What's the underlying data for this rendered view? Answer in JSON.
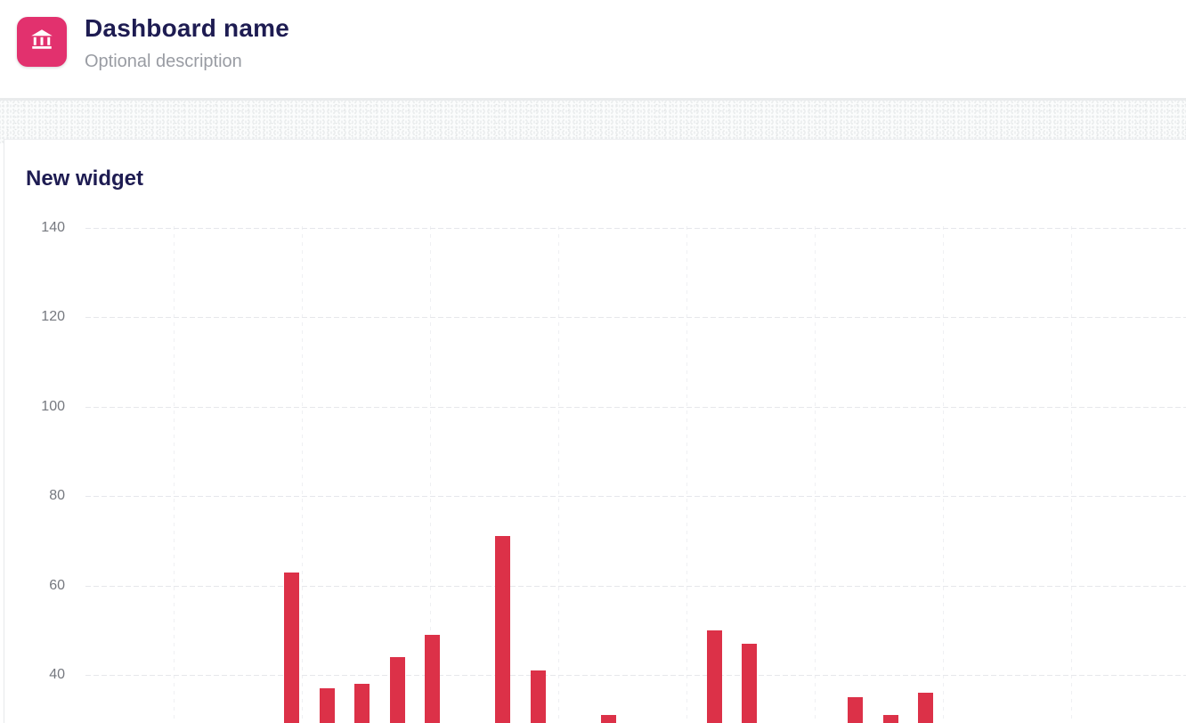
{
  "header": {
    "title": "Dashboard name",
    "description": "Optional description",
    "icon": "bank-icon",
    "icon_bg_color": "#e2316e"
  },
  "widget": {
    "title": "New widget"
  },
  "chart_data": {
    "type": "bar",
    "title": "New widget",
    "bar_color": "#dc3148",
    "y_ticks": [
      140,
      120,
      100,
      80,
      60,
      40
    ],
    "y_top_visible": 140,
    "values": [
      63,
      37,
      38,
      44,
      49,
      0,
      71,
      41,
      0,
      31,
      0,
      0,
      50,
      47,
      0,
      0,
      35,
      31,
      36
    ],
    "x_tick_labels_visible": false,
    "grid": "horizontal-dashed, faint-vertical-dashed",
    "note_bottom_clipped": "bars and x-axis are cut off at the bottom edge of the viewport"
  }
}
